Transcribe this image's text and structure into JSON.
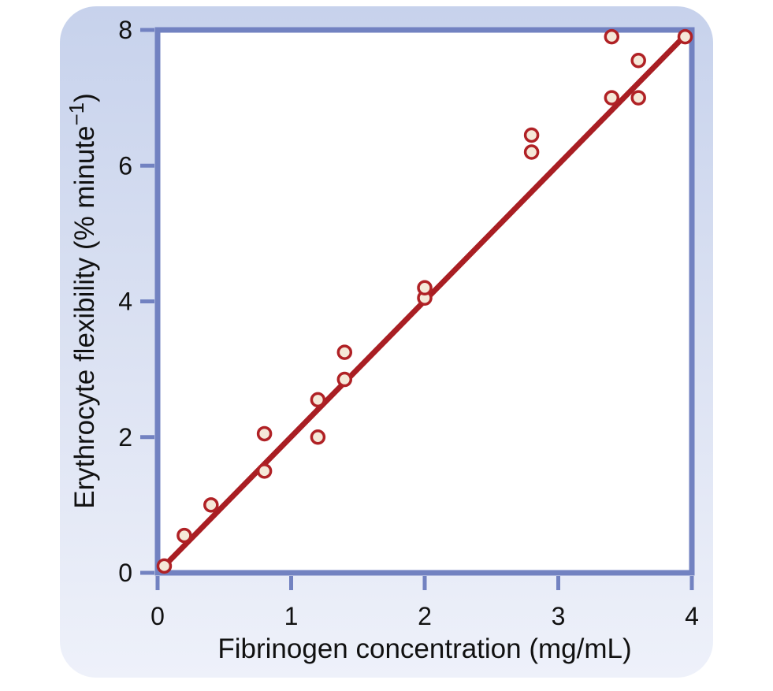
{
  "chart_data": {
    "type": "scatter",
    "title": "",
    "xlabel": "Fibrinogen concentration (mg/mL)",
    "ylabel": "Erythrocyte flexibility (% minute−1)",
    "ylabel_parts": {
      "main": "Erythrocyte flexibility (% minute",
      "sup": "−1",
      "end": ")"
    },
    "xlim": [
      0,
      4
    ],
    "ylim": [
      0,
      8
    ],
    "xticks": [
      0,
      1,
      2,
      3,
      4
    ],
    "yticks": [
      0,
      2,
      4,
      6,
      8
    ],
    "grid": false,
    "points": [
      [
        0.05,
        0.1
      ],
      [
        0.2,
        0.55
      ],
      [
        0.4,
        1.0
      ],
      [
        0.8,
        1.5
      ],
      [
        0.8,
        2.05
      ],
      [
        1.2,
        2.0
      ],
      [
        1.2,
        2.55
      ],
      [
        1.4,
        2.85
      ],
      [
        1.4,
        3.25
      ],
      [
        2.0,
        4.05
      ],
      [
        2.0,
        4.2
      ],
      [
        2.8,
        6.2
      ],
      [
        2.8,
        6.45
      ],
      [
        3.4,
        7.0
      ],
      [
        3.4,
        7.9
      ],
      [
        3.6,
        7.0
      ],
      [
        3.6,
        7.55
      ],
      [
        3.95,
        7.9
      ]
    ],
    "fit_line": {
      "x1": 0.03,
      "y1": 0.06,
      "x2": 3.95,
      "y2": 7.92,
      "slope_approx": 2.0
    },
    "colors": {
      "frame": "#7282c1",
      "line": "#a91e23",
      "marker_fill": "#f5e8d8",
      "marker_stroke": "#b02125",
      "plot_bg": "#ffffff",
      "card_top": "#c7d2ec",
      "card_mid": "#dde3f3",
      "card_bottom": "#eef1fa"
    }
  }
}
